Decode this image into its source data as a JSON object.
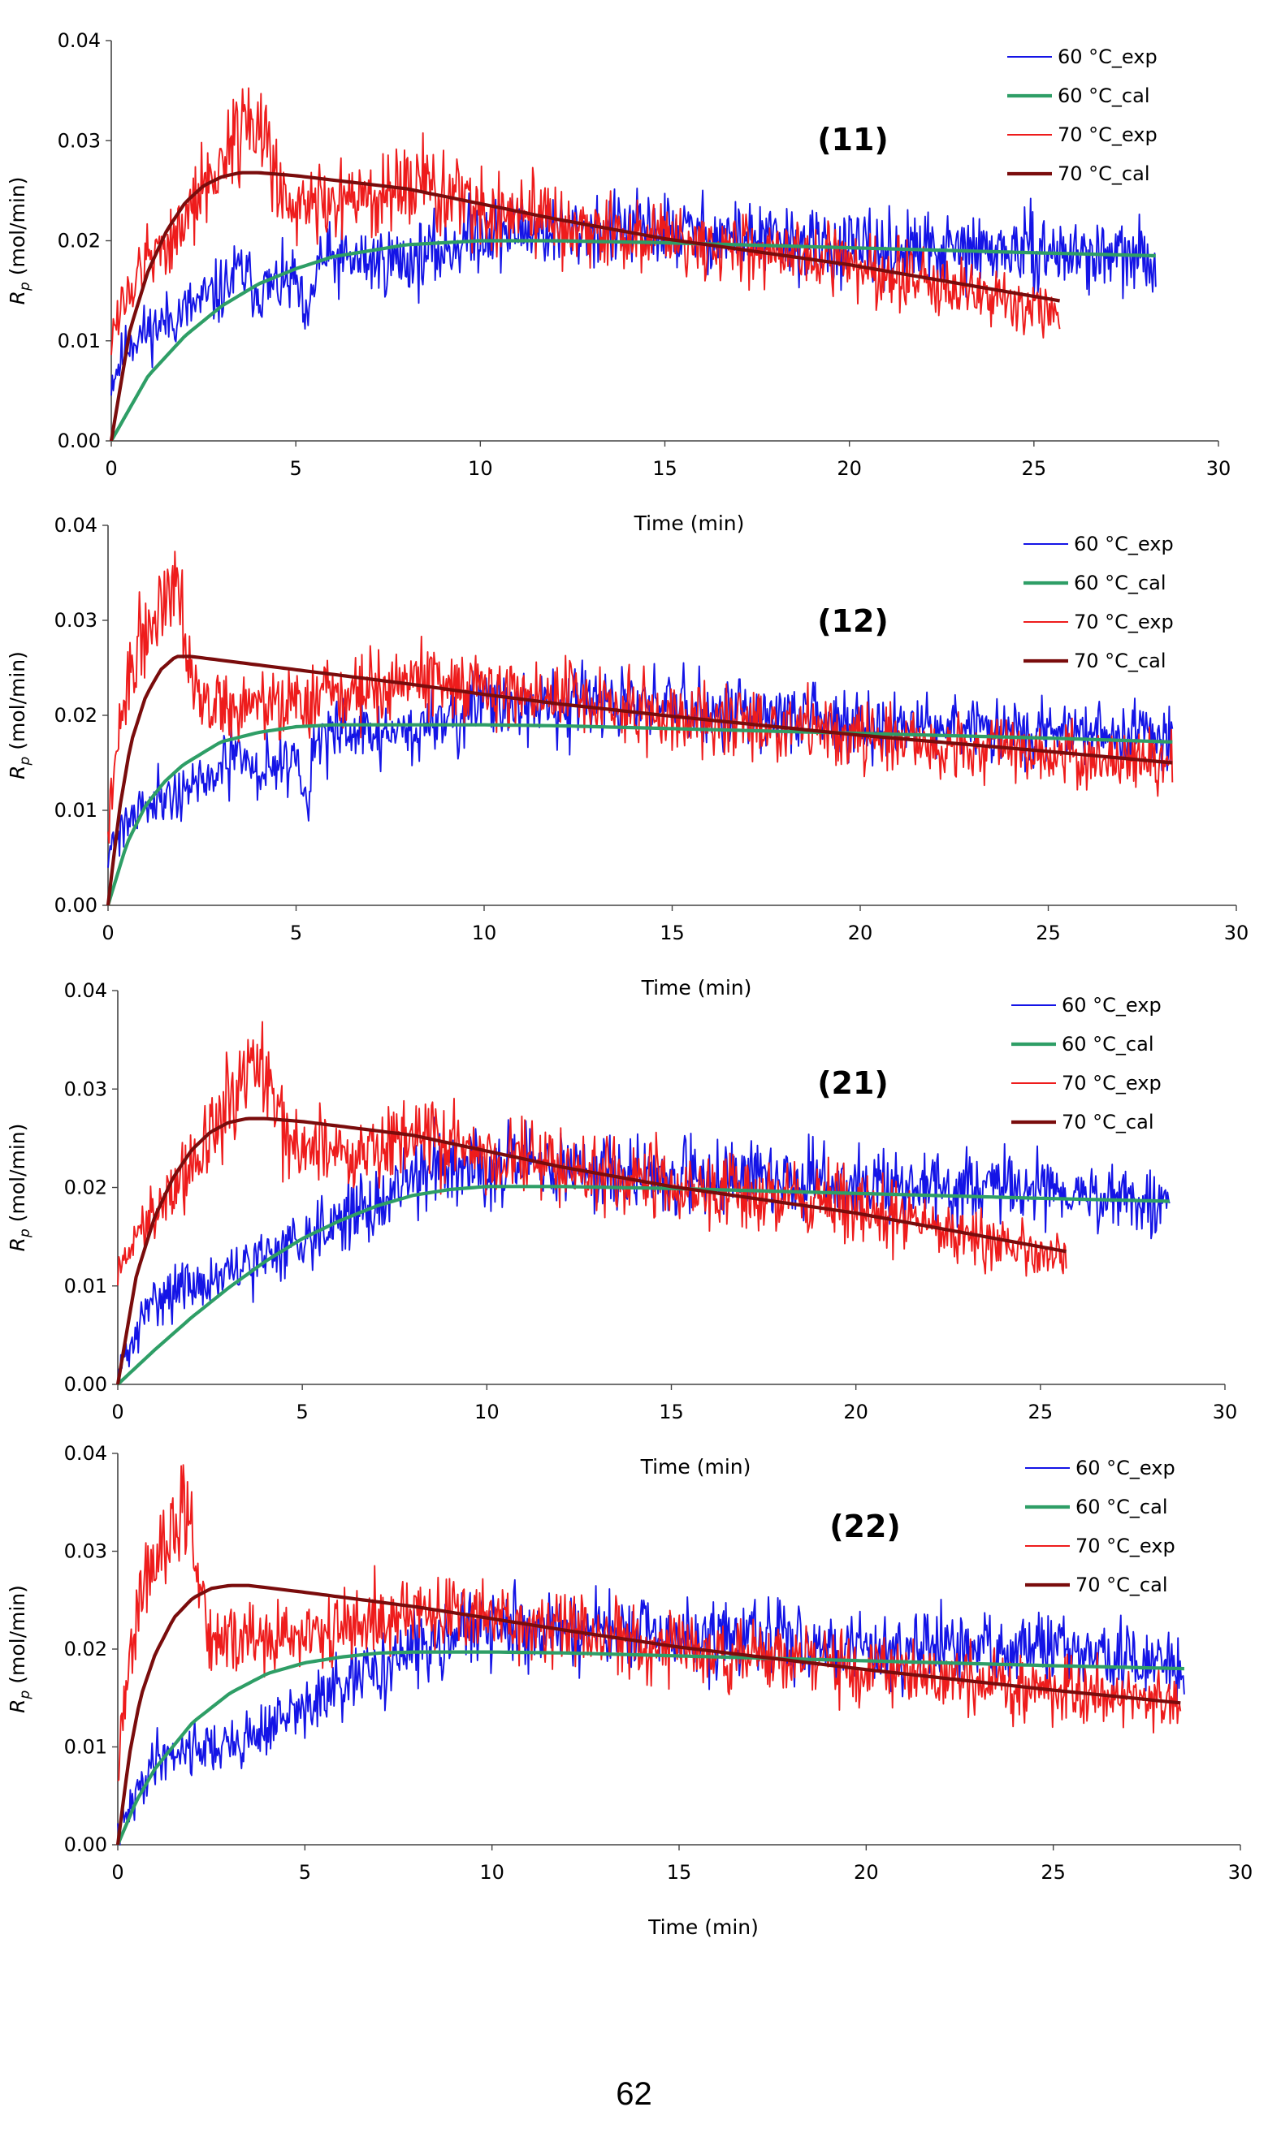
{
  "page": {
    "page_number": "62"
  },
  "series_colors": {
    "60 °C_exp": "#1414e6",
    "60 °C_cal": "#2e9e66",
    "70 °C_exp": "#ee1c1c",
    "70 °C_cal": "#7a0c0c"
  },
  "chart_data": [
    {
      "type": "line",
      "panel_label": "(11)",
      "title": "",
      "xlabel": "Time (min)",
      "ylabel_main": "R",
      "ylabel_sub": "p",
      "ylabel_unit": " (mol/min)",
      "xlim": [
        0,
        30
      ],
      "ylim": [
        0,
        0.04
      ],
      "x_ticks": [
        "0",
        "5",
        "10",
        "15",
        "20",
        "25",
        "30"
      ],
      "y_ticks": [
        "0.00",
        "0.01",
        "0.02",
        "0.03",
        "0.04"
      ],
      "grid": false,
      "legend": "top-right",
      "series": [
        {
          "name": "60 °C_exp",
          "kind": "exp",
          "x_end": 28.3,
          "seed": 11,
          "x": [
            0,
            0.5,
            1,
            2,
            3,
            3.5,
            4,
            5,
            5.3,
            5.6,
            6,
            7,
            8,
            9,
            10,
            12,
            15,
            18,
            20,
            25,
            28.3
          ],
          "y": [
            0.006,
            0.01,
            0.011,
            0.013,
            0.015,
            0.017,
            0.015,
            0.016,
            0.011,
            0.018,
            0.018,
            0.018,
            0.018,
            0.019,
            0.021,
            0.021,
            0.021,
            0.02,
            0.019,
            0.019,
            0.018
          ]
        },
        {
          "name": "60 °C_cal",
          "kind": "cal",
          "x_end": 28.3,
          "x": [
            0,
            1,
            2,
            3,
            4,
            5,
            6,
            8,
            10,
            12,
            15,
            20,
            25,
            28.3
          ],
          "y": [
            0.0,
            0.0065,
            0.0105,
            0.0135,
            0.0157,
            0.0172,
            0.0184,
            0.0196,
            0.02,
            0.02,
            0.0198,
            0.0193,
            0.0188,
            0.0185
          ]
        },
        {
          "name": "70 °C_exp",
          "kind": "exp",
          "x_end": 25.7,
          "seed": 12,
          "x": [
            0,
            0.5,
            1,
            2,
            3,
            3.4,
            3.7,
            4.1,
            4.6,
            5,
            7,
            8,
            9,
            10,
            12,
            15,
            18,
            20,
            22,
            24,
            25.7
          ],
          "y": [
            0.011,
            0.015,
            0.018,
            0.022,
            0.028,
            0.031,
            0.033,
            0.03,
            0.025,
            0.024,
            0.024,
            0.025,
            0.025,
            0.023,
            0.022,
            0.02,
            0.019,
            0.018,
            0.016,
            0.014,
            0.013
          ]
        },
        {
          "name": "70 °C_cal",
          "kind": "cal",
          "x_end": 25.7,
          "x": [
            0,
            0.5,
            1,
            1.5,
            2,
            2.5,
            3,
            3.5,
            4,
            5,
            8,
            10,
            12,
            15,
            20,
            25.7
          ],
          "y": [
            0.0,
            0.011,
            0.017,
            0.021,
            0.0238,
            0.0255,
            0.0264,
            0.0268,
            0.0268,
            0.0265,
            0.0252,
            0.0237,
            0.0222,
            0.0202,
            0.0176,
            0.014
          ]
        }
      ]
    },
    {
      "type": "line",
      "panel_label": "(12)",
      "title": "",
      "xlabel": "Time (min)",
      "ylabel_main": "R",
      "ylabel_sub": "p",
      "ylabel_unit": " (mol/min)",
      "xlim": [
        0,
        30
      ],
      "ylim": [
        0,
        0.04
      ],
      "x_ticks": [
        "0",
        "5",
        "10",
        "15",
        "20",
        "25",
        "30"
      ],
      "y_ticks": [
        "0.00",
        "0.01",
        "0.02",
        "0.03",
        "0.04"
      ],
      "grid": false,
      "legend": "top-right",
      "series": [
        {
          "name": "60 °C_exp",
          "kind": "exp",
          "x_end": 28.3,
          "seed": 21,
          "x": [
            0,
            0.5,
            1,
            2,
            3,
            3.5,
            4,
            5,
            5.3,
            5.6,
            6,
            7,
            8,
            9,
            10,
            12,
            15,
            18,
            20,
            25,
            28.3
          ],
          "y": [
            0.006,
            0.009,
            0.011,
            0.012,
            0.014,
            0.016,
            0.014,
            0.016,
            0.011,
            0.018,
            0.018,
            0.018,
            0.018,
            0.02,
            0.021,
            0.021,
            0.021,
            0.02,
            0.019,
            0.018,
            0.018
          ]
        },
        {
          "name": "60 °C_cal",
          "kind": "cal",
          "x_end": 28.3,
          "x": [
            0,
            0.5,
            1,
            1.5,
            2,
            2.5,
            3,
            4,
            5,
            6,
            8,
            10,
            12,
            15,
            20,
            25,
            28.3
          ],
          "y": [
            0.0,
            0.0065,
            0.0105,
            0.013,
            0.0148,
            0.016,
            0.0172,
            0.0182,
            0.0188,
            0.019,
            0.019,
            0.019,
            0.0189,
            0.0186,
            0.0181,
            0.0176,
            0.0172
          ]
        },
        {
          "name": "70 °C_exp",
          "kind": "exp",
          "x_end": 28.3,
          "seed": 22,
          "x": [
            0,
            0.3,
            0.6,
            1,
            1.4,
            1.7,
            1.9,
            2.2,
            2.5,
            3,
            5,
            7,
            8,
            10,
            12,
            15,
            18,
            20,
            22,
            25,
            28.3
          ],
          "y": [
            0.008,
            0.018,
            0.025,
            0.029,
            0.031,
            0.036,
            0.034,
            0.025,
            0.021,
            0.021,
            0.021,
            0.023,
            0.024,
            0.023,
            0.022,
            0.02,
            0.019,
            0.018,
            0.017,
            0.016,
            0.015
          ]
        },
        {
          "name": "70 °C_cal",
          "kind": "cal",
          "x_end": 28.3,
          "x": [
            0,
            0.3,
            0.6,
            1,
            1.4,
            1.8,
            2.2,
            3,
            5,
            8,
            10,
            12,
            15,
            20,
            25,
            28.3
          ],
          "y": [
            0.0,
            0.01,
            0.017,
            0.022,
            0.0248,
            0.0262,
            0.0262,
            0.0258,
            0.0248,
            0.0233,
            0.0222,
            0.0212,
            0.0199,
            0.0179,
            0.0162,
            0.015
          ]
        }
      ]
    },
    {
      "type": "line",
      "panel_label": "(21)",
      "title": "",
      "xlabel": "Time (min)",
      "ylabel_main": "R",
      "ylabel_sub": "p",
      "ylabel_unit": " (mol/min)",
      "xlim": [
        0,
        30
      ],
      "ylim": [
        0,
        0.04
      ],
      "x_ticks": [
        "0",
        "5",
        "10",
        "15",
        "20",
        "25",
        "30"
      ],
      "y_ticks": [
        "0.00",
        "0.01",
        "0.02",
        "0.03",
        "0.04"
      ],
      "grid": false,
      "legend": "top-right",
      "series": [
        {
          "name": "60 °C_exp",
          "kind": "exp",
          "x_end": 28.5,
          "seed": 31,
          "x": [
            0,
            0.5,
            1,
            2,
            3,
            4,
            5,
            6,
            7,
            8,
            9,
            10,
            12,
            15,
            18,
            20,
            25,
            28.5
          ],
          "y": [
            0.001,
            0.005,
            0.009,
            0.01,
            0.011,
            0.013,
            0.015,
            0.017,
            0.018,
            0.021,
            0.023,
            0.022,
            0.022,
            0.021,
            0.021,
            0.02,
            0.02,
            0.018
          ]
        },
        {
          "name": "60 °C_cal",
          "kind": "cal",
          "x_end": 28.5,
          "x": [
            0,
            1,
            2,
            3,
            4,
            5,
            6,
            7,
            8,
            9,
            10,
            12,
            15,
            20,
            25,
            28.5
          ],
          "y": [
            0.0,
            0.0035,
            0.0068,
            0.0098,
            0.0125,
            0.0148,
            0.0166,
            0.0181,
            0.0192,
            0.0198,
            0.0201,
            0.0201,
            0.0199,
            0.0194,
            0.0189,
            0.0186
          ]
        },
        {
          "name": "70 °C_exp",
          "kind": "exp",
          "x_end": 25.7,
          "seed": 32,
          "x": [
            0,
            0.5,
            1,
            2,
            3,
            3.4,
            3.7,
            4.1,
            4.6,
            5,
            7,
            8,
            9,
            10,
            12,
            15,
            18,
            20,
            22,
            24,
            25.7
          ],
          "y": [
            0.011,
            0.015,
            0.018,
            0.022,
            0.028,
            0.031,
            0.033,
            0.03,
            0.025,
            0.024,
            0.024,
            0.025,
            0.025,
            0.023,
            0.022,
            0.02,
            0.019,
            0.018,
            0.016,
            0.014,
            0.013
          ]
        },
        {
          "name": "70 °C_cal",
          "kind": "cal",
          "x_end": 25.7,
          "x": [
            0,
            0.5,
            1,
            1.5,
            2,
            2.5,
            3,
            3.5,
            4,
            5,
            8,
            10,
            12,
            15,
            20,
            25.7
          ],
          "y": [
            0.0,
            0.011,
            0.017,
            0.021,
            0.0238,
            0.0256,
            0.0266,
            0.027,
            0.027,
            0.0267,
            0.0253,
            0.0237,
            0.0221,
            0.0201,
            0.0174,
            0.0135
          ]
        }
      ]
    },
    {
      "type": "line",
      "panel_label": "(22)",
      "title": "",
      "xlabel": "Time (min)",
      "ylabel_main": "R",
      "ylabel_sub": "p",
      "ylabel_unit": " (mol/min)",
      "xlim": [
        0,
        30
      ],
      "ylim": [
        0,
        0.04
      ],
      "x_ticks": [
        "0",
        "5",
        "10",
        "15",
        "20",
        "25",
        "30"
      ],
      "y_ticks": [
        "0.00",
        "0.01",
        "0.02",
        "0.03",
        "0.04"
      ],
      "grid": false,
      "legend": "top-right",
      "series": [
        {
          "name": "60 °C_exp",
          "kind": "exp",
          "x_end": 28.5,
          "seed": 41,
          "x": [
            0,
            0.5,
            1,
            2,
            3,
            4,
            5,
            6,
            7,
            8,
            9,
            10,
            12,
            15,
            18,
            20,
            25,
            28.5
          ],
          "y": [
            0.001,
            0.005,
            0.009,
            0.01,
            0.01,
            0.012,
            0.014,
            0.016,
            0.018,
            0.02,
            0.022,
            0.022,
            0.022,
            0.021,
            0.021,
            0.02,
            0.02,
            0.018
          ]
        },
        {
          "name": "60 °C_cal",
          "kind": "cal",
          "x_end": 28.5,
          "x": [
            0,
            0.5,
            1,
            2,
            3,
            4,
            5,
            6,
            7,
            8,
            10,
            12,
            15,
            20,
            25,
            28.5
          ],
          "y": [
            0.0,
            0.0045,
            0.0078,
            0.0125,
            0.0155,
            0.0175,
            0.0186,
            0.0192,
            0.0196,
            0.0197,
            0.0197,
            0.0196,
            0.0193,
            0.0188,
            0.0183,
            0.018
          ]
        },
        {
          "name": "70 °C_exp",
          "kind": "exp",
          "x_end": 28.4,
          "seed": 42,
          "x": [
            0,
            0.3,
            0.6,
            1,
            1.4,
            1.7,
            1.9,
            2.2,
            2.5,
            3,
            5,
            7,
            8,
            10,
            12,
            15,
            18,
            20,
            22,
            25,
            28.4
          ],
          "y": [
            0.008,
            0.018,
            0.026,
            0.029,
            0.03,
            0.035,
            0.033,
            0.025,
            0.021,
            0.021,
            0.021,
            0.023,
            0.024,
            0.023,
            0.022,
            0.02,
            0.019,
            0.018,
            0.017,
            0.016,
            0.015
          ]
        },
        {
          "name": "70 °C_cal",
          "kind": "cal",
          "x_end": 28.4,
          "x": [
            0,
            0.3,
            0.6,
            1,
            1.5,
            2,
            2.5,
            3,
            3.5,
            5,
            8,
            10,
            12,
            15,
            20,
            25,
            28.4
          ],
          "y": [
            0.0,
            0.009,
            0.015,
            0.0195,
            0.0232,
            0.0252,
            0.0262,
            0.0265,
            0.0265,
            0.0258,
            0.0243,
            0.0231,
            0.0219,
            0.0202,
            0.0179,
            0.0158,
            0.0145
          ]
        }
      ]
    }
  ]
}
